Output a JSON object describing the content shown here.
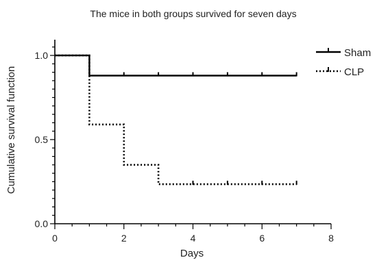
{
  "chart_data": {
    "type": "line",
    "title": "The mice in both groups survived for seven days",
    "xlabel": "Days",
    "ylabel": "Cumulative survival function",
    "xlim": [
      0,
      8
    ],
    "ylim": [
      0,
      1.0
    ],
    "x_ticks": [
      0,
      2,
      4,
      6,
      8
    ],
    "x_tick_labels": [
      "0",
      "2",
      "4",
      "6",
      "8"
    ],
    "y_ticks": [
      0,
      0.5,
      1.0
    ],
    "y_tick_labels": [
      "0.0",
      "0.5",
      "1.0"
    ],
    "grid": false,
    "legend_position": "top-right",
    "series": [
      {
        "name": "Sham",
        "style": "solid",
        "color": "#000000",
        "steps": [
          [
            0,
            1.0
          ],
          [
            1,
            1.0
          ],
          [
            1,
            0.88
          ],
          [
            7,
            0.88
          ]
        ],
        "censor_x": [
          2,
          3,
          4,
          5,
          6,
          7
        ]
      },
      {
        "name": "CLP",
        "style": "dotted",
        "color": "#000000",
        "steps": [
          [
            0,
            1.0
          ],
          [
            1,
            1.0
          ],
          [
            1,
            0.59
          ],
          [
            2,
            0.59
          ],
          [
            2,
            0.35
          ],
          [
            3,
            0.35
          ],
          [
            3,
            0.235
          ],
          [
            7,
            0.235
          ]
        ],
        "censor_x": [
          4,
          5,
          6,
          7
        ]
      }
    ]
  }
}
